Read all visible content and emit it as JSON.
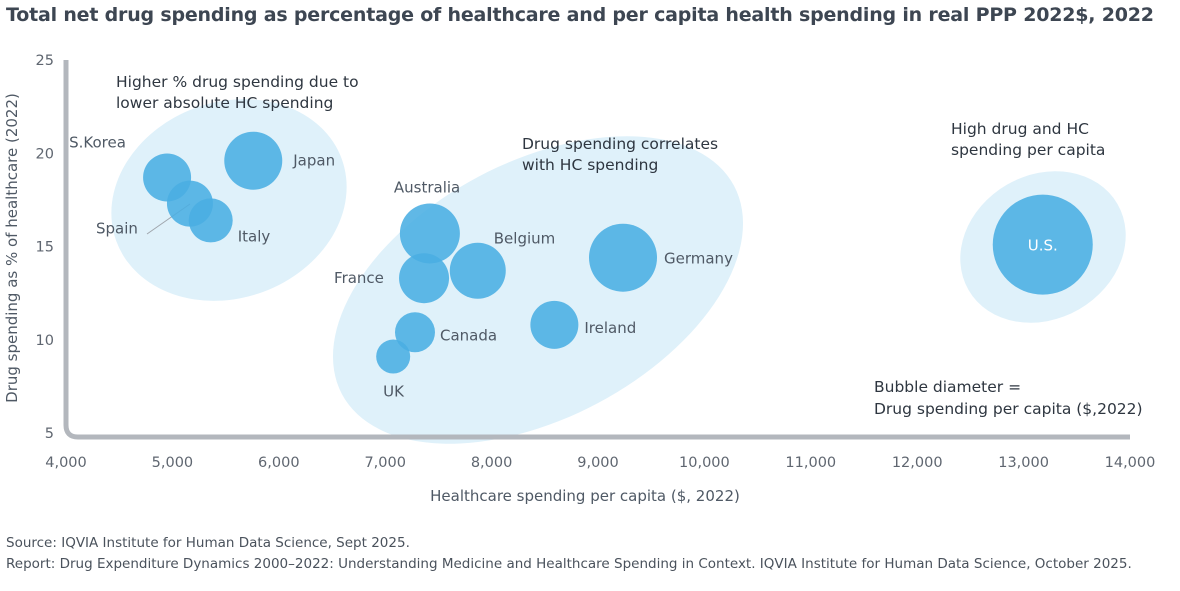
{
  "title": "Total net drug spending as percentage of healthcare and per capita health spending in real PPP 2022$, 2022",
  "chart_data": {
    "type": "scatter",
    "subtype": "bubble",
    "title": "Total net drug spending as percentage of healthcare and per capita health spending in real PPP 2022$, 2022",
    "xlabel": "Healthcare spending per capita ($, 2022)",
    "ylabel": "Drug spending as % of healthcare (2022)",
    "xlim": [
      4000,
      14000
    ],
    "ylim": [
      5,
      25
    ],
    "xticks": [
      "4,000",
      "5,000",
      "6,000",
      "7,000",
      "8,000",
      "9,000",
      "10,000",
      "11,000",
      "12,000",
      "13,000",
      "14,000"
    ],
    "yticks": [
      "5",
      "10",
      "15",
      "20",
      "25"
    ],
    "grid": false,
    "bubble_color": "#4aaee2",
    "cluster_color": "#dff1fa",
    "points": [
      {
        "label": "S.Korea",
        "x": 4950,
        "y": 18.7,
        "size": 48
      },
      {
        "label": "Spain",
        "x": 5165,
        "y": 17.3,
        "size": 46
      },
      {
        "label": "Italy",
        "x": 5360,
        "y": 16.4,
        "size": 44
      },
      {
        "label": "Japan",
        "x": 5760,
        "y": 19.6,
        "size": 58
      },
      {
        "label": "Australia",
        "x": 7420,
        "y": 15.7,
        "size": 60
      },
      {
        "label": "France",
        "x": 7365,
        "y": 13.3,
        "size": 50
      },
      {
        "label": "Belgium",
        "x": 7870,
        "y": 13.7,
        "size": 56
      },
      {
        "label": "Canada",
        "x": 7280,
        "y": 10.4,
        "size": 40
      },
      {
        "label": "UK",
        "x": 7075,
        "y": 9.1,
        "size": 34
      },
      {
        "label": "Ireland",
        "x": 8590,
        "y": 10.8,
        "size": 48
      },
      {
        "label": "Germany",
        "x": 9235,
        "y": 14.4,
        "size": 68
      },
      {
        "label": "U.S.",
        "x": 13180,
        "y": 15.1,
        "size": 100
      }
    ],
    "annotations": {
      "cluster1_line1": "Higher % drug spending due to",
      "cluster1_line2": "lower absolute HC spending",
      "cluster2_line1": "Drug spending correlates",
      "cluster2_line2": "with HC spending",
      "cluster3_line1": "High drug and HC",
      "cluster3_line2": "spending per capita",
      "size_note_line1": "Bubble diameter =",
      "size_note_line2": "Drug spending per capita ($,2022)"
    }
  },
  "footer": {
    "source": "Source: IQVIA Institute for Human Data Science, Sept 2025.",
    "report": "Report: Drug Expenditure Dynamics 2000–2022: Understanding Medicine and Healthcare Spending in Context. IQVIA Institute for Human Data Science, October 2025."
  }
}
